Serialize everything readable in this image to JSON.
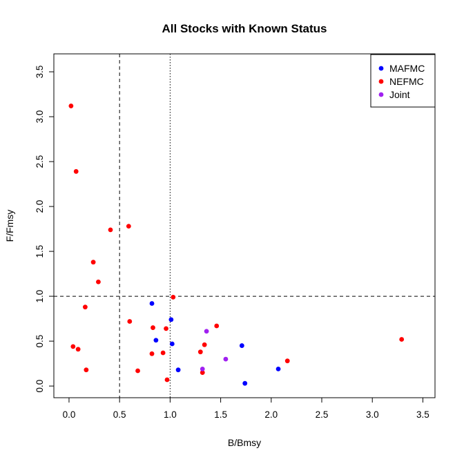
{
  "chart_data": {
    "type": "scatter",
    "title": "All Stocks with Known Status",
    "xlabel": "B/Bmsy",
    "ylabel": "F/Fmsy",
    "xlim": [
      -0.15,
      3.62
    ],
    "ylim": [
      -0.13,
      3.7
    ],
    "xticks": [
      "0.0",
      "0.5",
      "1.0",
      "1.5",
      "2.0",
      "2.5",
      "3.0",
      "3.5"
    ],
    "yticks": [
      "0.0",
      "0.5",
      "1.0",
      "1.5",
      "2.0",
      "2.5",
      "3.0",
      "3.5"
    ],
    "reference_lines": [
      {
        "axis": "x",
        "value": 0.5,
        "style": "dashed"
      },
      {
        "axis": "x",
        "value": 1.0,
        "style": "dotted"
      },
      {
        "axis": "y",
        "value": 1.0,
        "style": "dashed"
      }
    ],
    "legend_position": "top-right",
    "grid": false,
    "series": [
      {
        "name": "MAFMC",
        "color": "#0000ff",
        "points": [
          {
            "x": 0.82,
            "y": 0.92
          },
          {
            "x": 1.01,
            "y": 0.74
          },
          {
            "x": 0.86,
            "y": 0.51
          },
          {
            "x": 1.02,
            "y": 0.47
          },
          {
            "x": 1.08,
            "y": 0.18
          },
          {
            "x": 1.71,
            "y": 0.45
          },
          {
            "x": 2.07,
            "y": 0.19
          },
          {
            "x": 1.74,
            "y": 0.03
          }
        ]
      },
      {
        "name": "NEFMC",
        "color": "#ff0000",
        "points": [
          {
            "x": 0.02,
            "y": 3.12
          },
          {
            "x": 0.07,
            "y": 2.39
          },
          {
            "x": 0.41,
            "y": 1.74
          },
          {
            "x": 0.59,
            "y": 1.78
          },
          {
            "x": 0.24,
            "y": 1.38
          },
          {
            "x": 0.29,
            "y": 1.16
          },
          {
            "x": 0.16,
            "y": 0.88
          },
          {
            "x": 1.03,
            "y": 0.99
          },
          {
            "x": 0.6,
            "y": 0.72
          },
          {
            "x": 0.83,
            "y": 0.65
          },
          {
            "x": 0.96,
            "y": 0.64
          },
          {
            "x": 1.46,
            "y": 0.67
          },
          {
            "x": 0.04,
            "y": 0.44
          },
          {
            "x": 0.09,
            "y": 0.41
          },
          {
            "x": 0.82,
            "y": 0.36
          },
          {
            "x": 0.93,
            "y": 0.37
          },
          {
            "x": 1.34,
            "y": 0.46
          },
          {
            "x": 1.3,
            "y": 0.38
          },
          {
            "x": 0.17,
            "y": 0.18
          },
          {
            "x": 0.68,
            "y": 0.17
          },
          {
            "x": 0.97,
            "y": 0.07
          },
          {
            "x": 1.32,
            "y": 0.15
          },
          {
            "x": 2.16,
            "y": 0.28
          },
          {
            "x": 3.29,
            "y": 0.52
          }
        ]
      },
      {
        "name": "Joint",
        "color": "#a020f0",
        "points": [
          {
            "x": 1.36,
            "y": 0.61
          },
          {
            "x": 1.55,
            "y": 0.3
          },
          {
            "x": 1.32,
            "y": 0.19
          }
        ]
      }
    ]
  }
}
